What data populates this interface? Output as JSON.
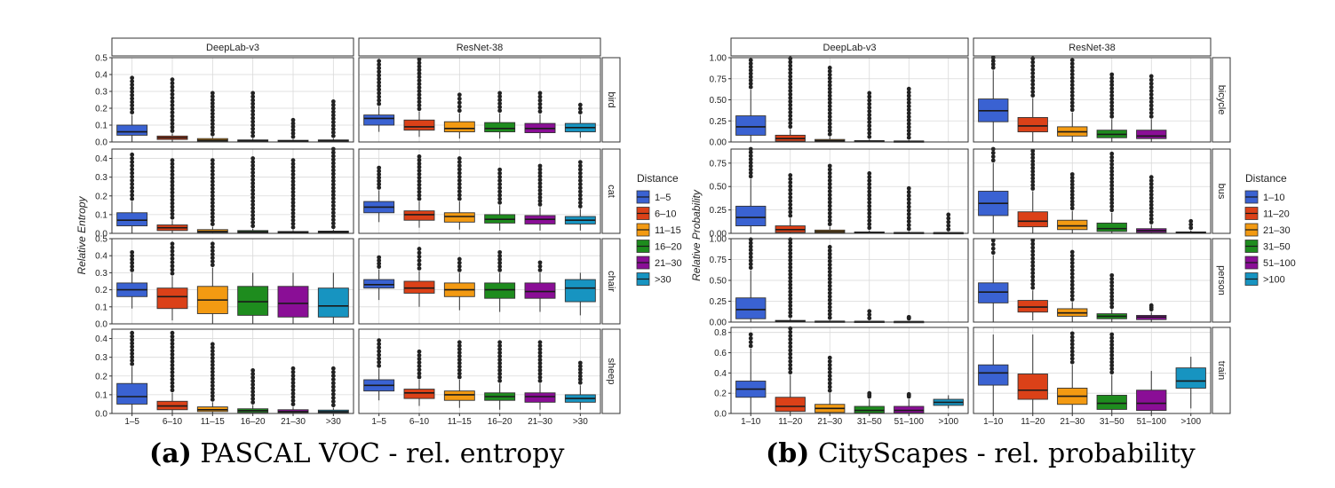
{
  "captions": {
    "a_label": "(a)",
    "a_text": "PASCAL VOC - rel. entropy",
    "b_label": "(b)",
    "b_text": "CityScapes - rel. probability"
  },
  "chart_data": [
    {
      "type": "boxplot",
      "title": "",
      "ylabel": "Relative Entropy",
      "columns": [
        "DeepLab-v3",
        "ResNet-38"
      ],
      "rows": [
        "bird",
        "cat",
        "chair",
        "sheep"
      ],
      "categories": [
        "1–5",
        "6–10",
        "11–15",
        "16–20",
        "21–30",
        ">30"
      ],
      "legend": {
        "title": "Distance",
        "entries": [
          "1–5",
          "6–10",
          "11–15",
          "16–20",
          "21–30",
          ">30"
        ],
        "colors": [
          "#3A62D2",
          "#DB4118",
          "#F39A12",
          "#1E8C1E",
          "#8A0E96",
          "#1794C1"
        ]
      },
      "row_axes": [
        {
          "ylim": [
            0,
            0.5
          ],
          "ticks": [
            "0.0",
            "0.1",
            "0.2",
            "0.3",
            "0.4",
            "0.5"
          ]
        },
        {
          "ylim": [
            0,
            0.45
          ],
          "ticks": [
            "0.0",
            "0.1",
            "0.2",
            "0.3",
            "0.4"
          ]
        },
        {
          "ylim": [
            0,
            0.5
          ],
          "ticks": [
            "0.0",
            "0.1",
            "0.2",
            "0.3",
            "0.4",
            "0.5"
          ]
        },
        {
          "ylim": [
            0,
            0.45
          ],
          "ticks": [
            "0.0",
            "0.1",
            "0.2",
            "0.3",
            "0.4"
          ]
        }
      ],
      "boxes": [
        [
          [
            [
              0.06,
              0.04,
              0.1,
              0.0,
              0.16,
              0.38
            ],
            [
              0.025,
              0.015,
              0.035,
              0.0,
              0.05,
              0.37
            ],
            [
              0.01,
              0.005,
              0.02,
              0.0,
              0.03,
              0.29
            ],
            [
              0.008,
              0.004,
              0.012,
              0.0,
              0.02,
              0.29
            ],
            [
              0.006,
              0.003,
              0.01,
              0.0,
              0.015,
              0.13
            ],
            [
              0.008,
              0.004,
              0.012,
              0.0,
              0.02,
              0.24
            ]
          ],
          [
            [
              0.14,
              0.1,
              0.16,
              0.06,
              0.21,
              0.48
            ],
            [
              0.09,
              0.07,
              0.13,
              0.03,
              0.18,
              0.49
            ],
            [
              0.08,
              0.06,
              0.12,
              0.02,
              0.17,
              0.28
            ],
            [
              0.08,
              0.06,
              0.115,
              0.02,
              0.17,
              0.29
            ],
            [
              0.08,
              0.055,
              0.11,
              0.02,
              0.165,
              0.29
            ],
            [
              0.085,
              0.06,
              0.11,
              0.025,
              0.16,
              0.22
            ]
          ]
        ],
        [
          [
            [
              0.07,
              0.04,
              0.11,
              0.0,
              0.17,
              0.42
            ],
            [
              0.03,
              0.015,
              0.045,
              0.0,
              0.07,
              0.39
            ],
            [
              0.01,
              0.005,
              0.02,
              0.0,
              0.035,
              0.39
            ],
            [
              0.008,
              0.004,
              0.015,
              0.0,
              0.025,
              0.4
            ],
            [
              0.006,
              0.003,
              0.01,
              0.0,
              0.018,
              0.39
            ],
            [
              0.008,
              0.004,
              0.012,
              0.0,
              0.02,
              0.45
            ]
          ],
          [
            [
              0.14,
              0.11,
              0.17,
              0.06,
              0.23,
              0.35
            ],
            [
              0.1,
              0.07,
              0.12,
              0.03,
              0.17,
              0.41
            ],
            [
              0.09,
              0.06,
              0.11,
              0.02,
              0.17,
              0.4
            ],
            [
              0.075,
              0.055,
              0.1,
              0.015,
              0.15,
              0.34
            ],
            [
              0.075,
              0.05,
              0.095,
              0.015,
              0.14,
              0.36
            ],
            [
              0.07,
              0.05,
              0.09,
              0.015,
              0.13,
              0.38
            ]
          ]
        ],
        [
          [
            [
              0.2,
              0.16,
              0.24,
              0.09,
              0.3,
              0.42
            ],
            [
              0.16,
              0.09,
              0.21,
              0.02,
              0.28,
              0.47
            ],
            [
              0.14,
              0.06,
              0.22,
              0.0,
              0.33,
              0.47
            ],
            [
              0.13,
              0.05,
              0.22,
              0.0,
              0.3,
              0.3
            ],
            [
              0.12,
              0.04,
              0.22,
              0.0,
              0.3,
              0.3
            ],
            [
              0.105,
              0.04,
              0.21,
              0.0,
              0.3,
              0.3
            ]
          ],
          [
            [
              0.23,
              0.21,
              0.26,
              0.14,
              0.32,
              0.39
            ],
            [
              0.21,
              0.18,
              0.25,
              0.1,
              0.31,
              0.44
            ],
            [
              0.2,
              0.16,
              0.24,
              0.08,
              0.3,
              0.38
            ],
            [
              0.2,
              0.15,
              0.24,
              0.07,
              0.3,
              0.42
            ],
            [
              0.19,
              0.15,
              0.24,
              0.07,
              0.3,
              0.36
            ],
            [
              0.21,
              0.13,
              0.26,
              0.05,
              0.3,
              0.3
            ]
          ]
        ],
        [
          [
            [
              0.09,
              0.05,
              0.16,
              0.0,
              0.25,
              0.43
            ],
            [
              0.04,
              0.02,
              0.065,
              0.0,
              0.11,
              0.43
            ],
            [
              0.02,
              0.01,
              0.035,
              0.0,
              0.06,
              0.37
            ],
            [
              0.015,
              0.005,
              0.025,
              0.0,
              0.045,
              0.23
            ],
            [
              0.01,
              0.005,
              0.02,
              0.0,
              0.035,
              0.24
            ],
            [
              0.01,
              0.004,
              0.018,
              0.0,
              0.03,
              0.24
            ]
          ],
          [
            [
              0.15,
              0.12,
              0.18,
              0.07,
              0.24,
              0.39
            ],
            [
              0.11,
              0.08,
              0.13,
              0.04,
              0.18,
              0.33
            ],
            [
              0.1,
              0.07,
              0.12,
              0.03,
              0.18,
              0.38
            ],
            [
              0.09,
              0.07,
              0.11,
              0.02,
              0.16,
              0.38
            ],
            [
              0.09,
              0.06,
              0.11,
              0.02,
              0.16,
              0.38
            ],
            [
              0.08,
              0.06,
              0.1,
              0.02,
              0.15,
              0.27
            ]
          ]
        ]
      ]
    },
    {
      "type": "boxplot",
      "title": "",
      "ylabel": "Relative Probability",
      "columns": [
        "DeepLab-v3",
        "ResNet-38"
      ],
      "rows": [
        "bicycle",
        "bus",
        "person",
        "train"
      ],
      "categories": [
        "1–10",
        "11–20",
        "21–30",
        "31–50",
        "51–100",
        ">100"
      ],
      "legend": {
        "title": "Distance",
        "entries": [
          "1–10",
          "11–20",
          "21–30",
          "31–50",
          "51–100",
          ">100"
        ],
        "colors": [
          "#3A62D2",
          "#DB4118",
          "#F39A12",
          "#1E8C1E",
          "#8A0E96",
          "#1794C1"
        ]
      },
      "row_axes": [
        {
          "ylim": [
            0,
            1.0
          ],
          "ticks": [
            "0.00",
            "0.25",
            "0.50",
            "0.75",
            "1.00"
          ]
        },
        {
          "ylim": [
            0,
            0.9
          ],
          "ticks": [
            "0.00",
            "0.25",
            "0.50",
            "0.75"
          ]
        },
        {
          "ylim": [
            0,
            1.0
          ],
          "ticks": [
            "0.00",
            "0.25",
            "0.50",
            "0.75",
            "1.00"
          ]
        },
        {
          "ylim": [
            0,
            0.85
          ],
          "ticks": [
            "0.0",
            "0.2",
            "0.4",
            "0.6",
            "0.8"
          ]
        }
      ],
      "boxes": [
        [
          [
            [
              0.18,
              0.08,
              0.31,
              0.0,
              0.62,
              0.97
            ],
            [
              0.04,
              0.01,
              0.08,
              0.0,
              0.15,
              0.99
            ],
            [
              0.015,
              0.005,
              0.03,
              0.0,
              0.06,
              0.88
            ],
            [
              0.01,
              0.004,
              0.015,
              0.0,
              0.03,
              0.58
            ],
            [
              0.008,
              0.003,
              0.012,
              0.0,
              0.02,
              0.63
            ],
            null
          ],
          [
            [
              0.37,
              0.24,
              0.51,
              0.0,
              0.85,
              1.0
            ],
            [
              0.19,
              0.12,
              0.29,
              0.0,
              0.52,
              0.99
            ],
            [
              0.12,
              0.07,
              0.18,
              0.0,
              0.35,
              0.97
            ],
            [
              0.09,
              0.05,
              0.14,
              0.0,
              0.27,
              0.8
            ],
            [
              0.07,
              0.04,
              0.14,
              0.0,
              0.27,
              0.78
            ],
            null
          ]
        ],
        [
          [
            [
              0.17,
              0.08,
              0.29,
              0.0,
              0.58,
              0.9
            ],
            [
              0.04,
              0.01,
              0.08,
              0.0,
              0.16,
              0.62
            ],
            [
              0.02,
              0.005,
              0.035,
              0.0,
              0.07,
              0.72
            ],
            [
              0.008,
              0.003,
              0.015,
              0.0,
              0.03,
              0.64
            ],
            [
              0.006,
              0.002,
              0.01,
              0.0,
              0.02,
              0.48
            ],
            [
              0.005,
              0.002,
              0.008,
              0.0,
              0.015,
              0.2
            ]
          ],
          [
            [
              0.32,
              0.19,
              0.45,
              0.0,
              0.75,
              0.9
            ],
            [
              0.13,
              0.07,
              0.23,
              0.0,
              0.45,
              0.88
            ],
            [
              0.08,
              0.04,
              0.14,
              0.0,
              0.24,
              0.63
            ],
            [
              0.05,
              0.02,
              0.11,
              0.0,
              0.22,
              0.85
            ],
            [
              0.03,
              0.01,
              0.05,
              0.0,
              0.09,
              0.6
            ],
            [
              0.01,
              0.005,
              0.015,
              0.0,
              0.03,
              0.13
            ]
          ]
        ],
        [
          [
            [
              0.15,
              0.04,
              0.29,
              0.0,
              0.62,
              0.99
            ],
            [
              0.01,
              0.005,
              0.02,
              0.0,
              0.04,
              0.99
            ],
            [
              0.008,
              0.004,
              0.012,
              0.0,
              0.02,
              0.9
            ],
            [
              0.006,
              0.003,
              0.01,
              0.0,
              0.015,
              0.13
            ],
            [
              0.005,
              0.002,
              0.008,
              0.0,
              0.012,
              0.06
            ],
            null
          ],
          [
            [
              0.36,
              0.23,
              0.47,
              0.0,
              0.8,
              0.98
            ],
            [
              0.18,
              0.12,
              0.26,
              0.02,
              0.38,
              0.98
            ],
            [
              0.11,
              0.07,
              0.16,
              0.0,
              0.24,
              0.84
            ],
            [
              0.07,
              0.04,
              0.1,
              0.0,
              0.15,
              0.56
            ],
            [
              0.06,
              0.03,
              0.08,
              0.0,
              0.12,
              0.2
            ],
            null
          ]
        ],
        [
          [
            [
              0.24,
              0.16,
              0.32,
              0.0,
              0.64,
              0.78
            ],
            [
              0.07,
              0.02,
              0.16,
              0.0,
              0.38,
              0.84
            ],
            [
              0.05,
              0.01,
              0.09,
              0.0,
              0.2,
              0.55
            ],
            [
              0.03,
              0.005,
              0.07,
              0.0,
              0.14,
              0.2
            ],
            [
              0.03,
              0.005,
              0.07,
              0.0,
              0.14,
              0.19
            ],
            [
              0.11,
              0.08,
              0.14,
              0.05,
              0.18,
              null
            ]
          ],
          [
            [
              0.4,
              0.28,
              0.48,
              0.0,
              0.78,
              null
            ],
            [
              0.23,
              0.14,
              0.39,
              0.0,
              0.78,
              null
            ],
            [
              0.17,
              0.09,
              0.25,
              0.0,
              0.48,
              0.79
            ],
            [
              0.1,
              0.04,
              0.18,
              0.0,
              0.38,
              0.78
            ],
            [
              0.1,
              0.03,
              0.23,
              0.0,
              0.42,
              null
            ],
            [
              0.32,
              0.25,
              0.45,
              0.05,
              0.56,
              null
            ]
          ]
        ]
      ]
    }
  ]
}
